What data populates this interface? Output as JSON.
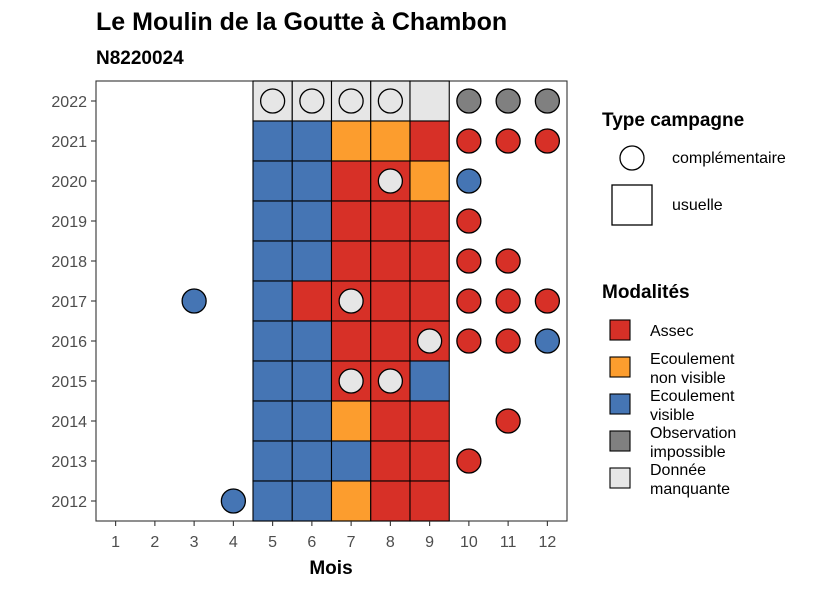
{
  "chart_data": {
    "type": "heatmap",
    "title": "Le Moulin de la Goutte à Chambon",
    "subtitle": "N8220024",
    "xlabel": "Mois",
    "ylabel": "",
    "x_ticks": [
      "1",
      "2",
      "3",
      "4",
      "5",
      "6",
      "7",
      "8",
      "9",
      "10",
      "11",
      "12"
    ],
    "y_ticks": [
      "2012",
      "2013",
      "2014",
      "2015",
      "2016",
      "2017",
      "2018",
      "2019",
      "2020",
      "2021",
      "2022"
    ],
    "xlim": [
      0.5,
      12.5
    ],
    "ylim": [
      2011.5,
      2022.5
    ],
    "grid": false,
    "legend_position": "right",
    "modalites": [
      {
        "key": "assec",
        "label_lines": [
          "Assec"
        ],
        "color": "#d73027"
      },
      {
        "key": "ecoulement_non_visible",
        "label_lines": [
          "Ecoulement",
          "non visible"
        ],
        "color": "#fc9d2e"
      },
      {
        "key": "ecoulement_visible",
        "label_lines": [
          "Ecoulement",
          "visible"
        ],
        "color": "#4575b4"
      },
      {
        "key": "observation_impossible",
        "label_lines": [
          "Observation",
          "impossible"
        ],
        "color": "#808080"
      },
      {
        "key": "donnee_manquante",
        "label_lines": [
          "Donnée",
          "manquante"
        ],
        "color": "#e6e6e6"
      }
    ],
    "type_campagne_title": "Type campagne",
    "type_campagne": [
      {
        "key": "complementaire",
        "label": "complémentaire",
        "shape": "circle"
      },
      {
        "key": "usuelle",
        "label": "usuelle",
        "shape": "square"
      }
    ],
    "modalites_title": "Modalités",
    "usuelle": [
      {
        "year": 2022,
        "months": [
          "donnee_manquante",
          "donnee_manquante",
          "donnee_manquante",
          "donnee_manquante",
          "donnee_manquante"
        ]
      },
      {
        "year": 2021,
        "months": [
          "ecoulement_visible",
          "ecoulement_visible",
          "ecoulement_non_visible",
          "ecoulement_non_visible",
          "assec"
        ]
      },
      {
        "year": 2020,
        "months": [
          "ecoulement_visible",
          "ecoulement_visible",
          "assec",
          "assec",
          "ecoulement_non_visible"
        ]
      },
      {
        "year": 2019,
        "months": [
          "ecoulement_visible",
          "ecoulement_visible",
          "assec",
          "assec",
          "assec"
        ]
      },
      {
        "year": 2018,
        "months": [
          "ecoulement_visible",
          "ecoulement_visible",
          "assec",
          "assec",
          "assec"
        ]
      },
      {
        "year": 2017,
        "months": [
          "ecoulement_visible",
          "assec",
          "assec",
          "assec",
          "assec"
        ]
      },
      {
        "year": 2016,
        "months": [
          "ecoulement_visible",
          "ecoulement_visible",
          "assec",
          "assec",
          "assec"
        ]
      },
      {
        "year": 2015,
        "months": [
          "ecoulement_visible",
          "ecoulement_visible",
          "assec",
          "assec",
          "ecoulement_visible"
        ]
      },
      {
        "year": 2014,
        "months": [
          "ecoulement_visible",
          "ecoulement_visible",
          "ecoulement_non_visible",
          "assec",
          "assec"
        ]
      },
      {
        "year": 2013,
        "months": [
          "ecoulement_visible",
          "ecoulement_visible",
          "ecoulement_visible",
          "assec",
          "assec"
        ]
      },
      {
        "year": 2012,
        "months": [
          "ecoulement_visible",
          "ecoulement_visible",
          "ecoulement_non_visible",
          "assec",
          "assec"
        ]
      }
    ],
    "usuelle_first_month": 5,
    "complementaire": [
      {
        "year": 2022,
        "month": 5,
        "value": "donnee_manquante"
      },
      {
        "year": 2022,
        "month": 6,
        "value": "donnee_manquante"
      },
      {
        "year": 2022,
        "month": 7,
        "value": "donnee_manquante"
      },
      {
        "year": 2022,
        "month": 8,
        "value": "donnee_manquante"
      },
      {
        "year": 2022,
        "month": 10,
        "value": "observation_impossible"
      },
      {
        "year": 2022,
        "month": 11,
        "value": "observation_impossible"
      },
      {
        "year": 2022,
        "month": 12,
        "value": "observation_impossible"
      },
      {
        "year": 2021,
        "month": 10,
        "value": "assec"
      },
      {
        "year": 2021,
        "month": 11,
        "value": "assec"
      },
      {
        "year": 2021,
        "month": 12,
        "value": "assec"
      },
      {
        "year": 2020,
        "month": 8,
        "value": "donnee_manquante"
      },
      {
        "year": 2020,
        "month": 10,
        "value": "ecoulement_visible"
      },
      {
        "year": 2019,
        "month": 10,
        "value": "assec"
      },
      {
        "year": 2018,
        "month": 10,
        "value": "assec"
      },
      {
        "year": 2018,
        "month": 11,
        "value": "assec"
      },
      {
        "year": 2017,
        "month": 3,
        "value": "ecoulement_visible"
      },
      {
        "year": 2017,
        "month": 7,
        "value": "donnee_manquante"
      },
      {
        "year": 2017,
        "month": 10,
        "value": "assec"
      },
      {
        "year": 2017,
        "month": 11,
        "value": "assec"
      },
      {
        "year": 2017,
        "month": 12,
        "value": "assec"
      },
      {
        "year": 2016,
        "month": 9,
        "value": "donnee_manquante"
      },
      {
        "year": 2016,
        "month": 10,
        "value": "assec"
      },
      {
        "year": 2016,
        "month": 11,
        "value": "assec"
      },
      {
        "year": 2016,
        "month": 12,
        "value": "ecoulement_visible"
      },
      {
        "year": 2015,
        "month": 7,
        "value": "donnee_manquante"
      },
      {
        "year": 2015,
        "month": 8,
        "value": "donnee_manquante"
      },
      {
        "year": 2014,
        "month": 11,
        "value": "assec"
      },
      {
        "year": 2013,
        "month": 10,
        "value": "assec"
      },
      {
        "year": 2012,
        "month": 4,
        "value": "ecoulement_visible"
      }
    ]
  }
}
